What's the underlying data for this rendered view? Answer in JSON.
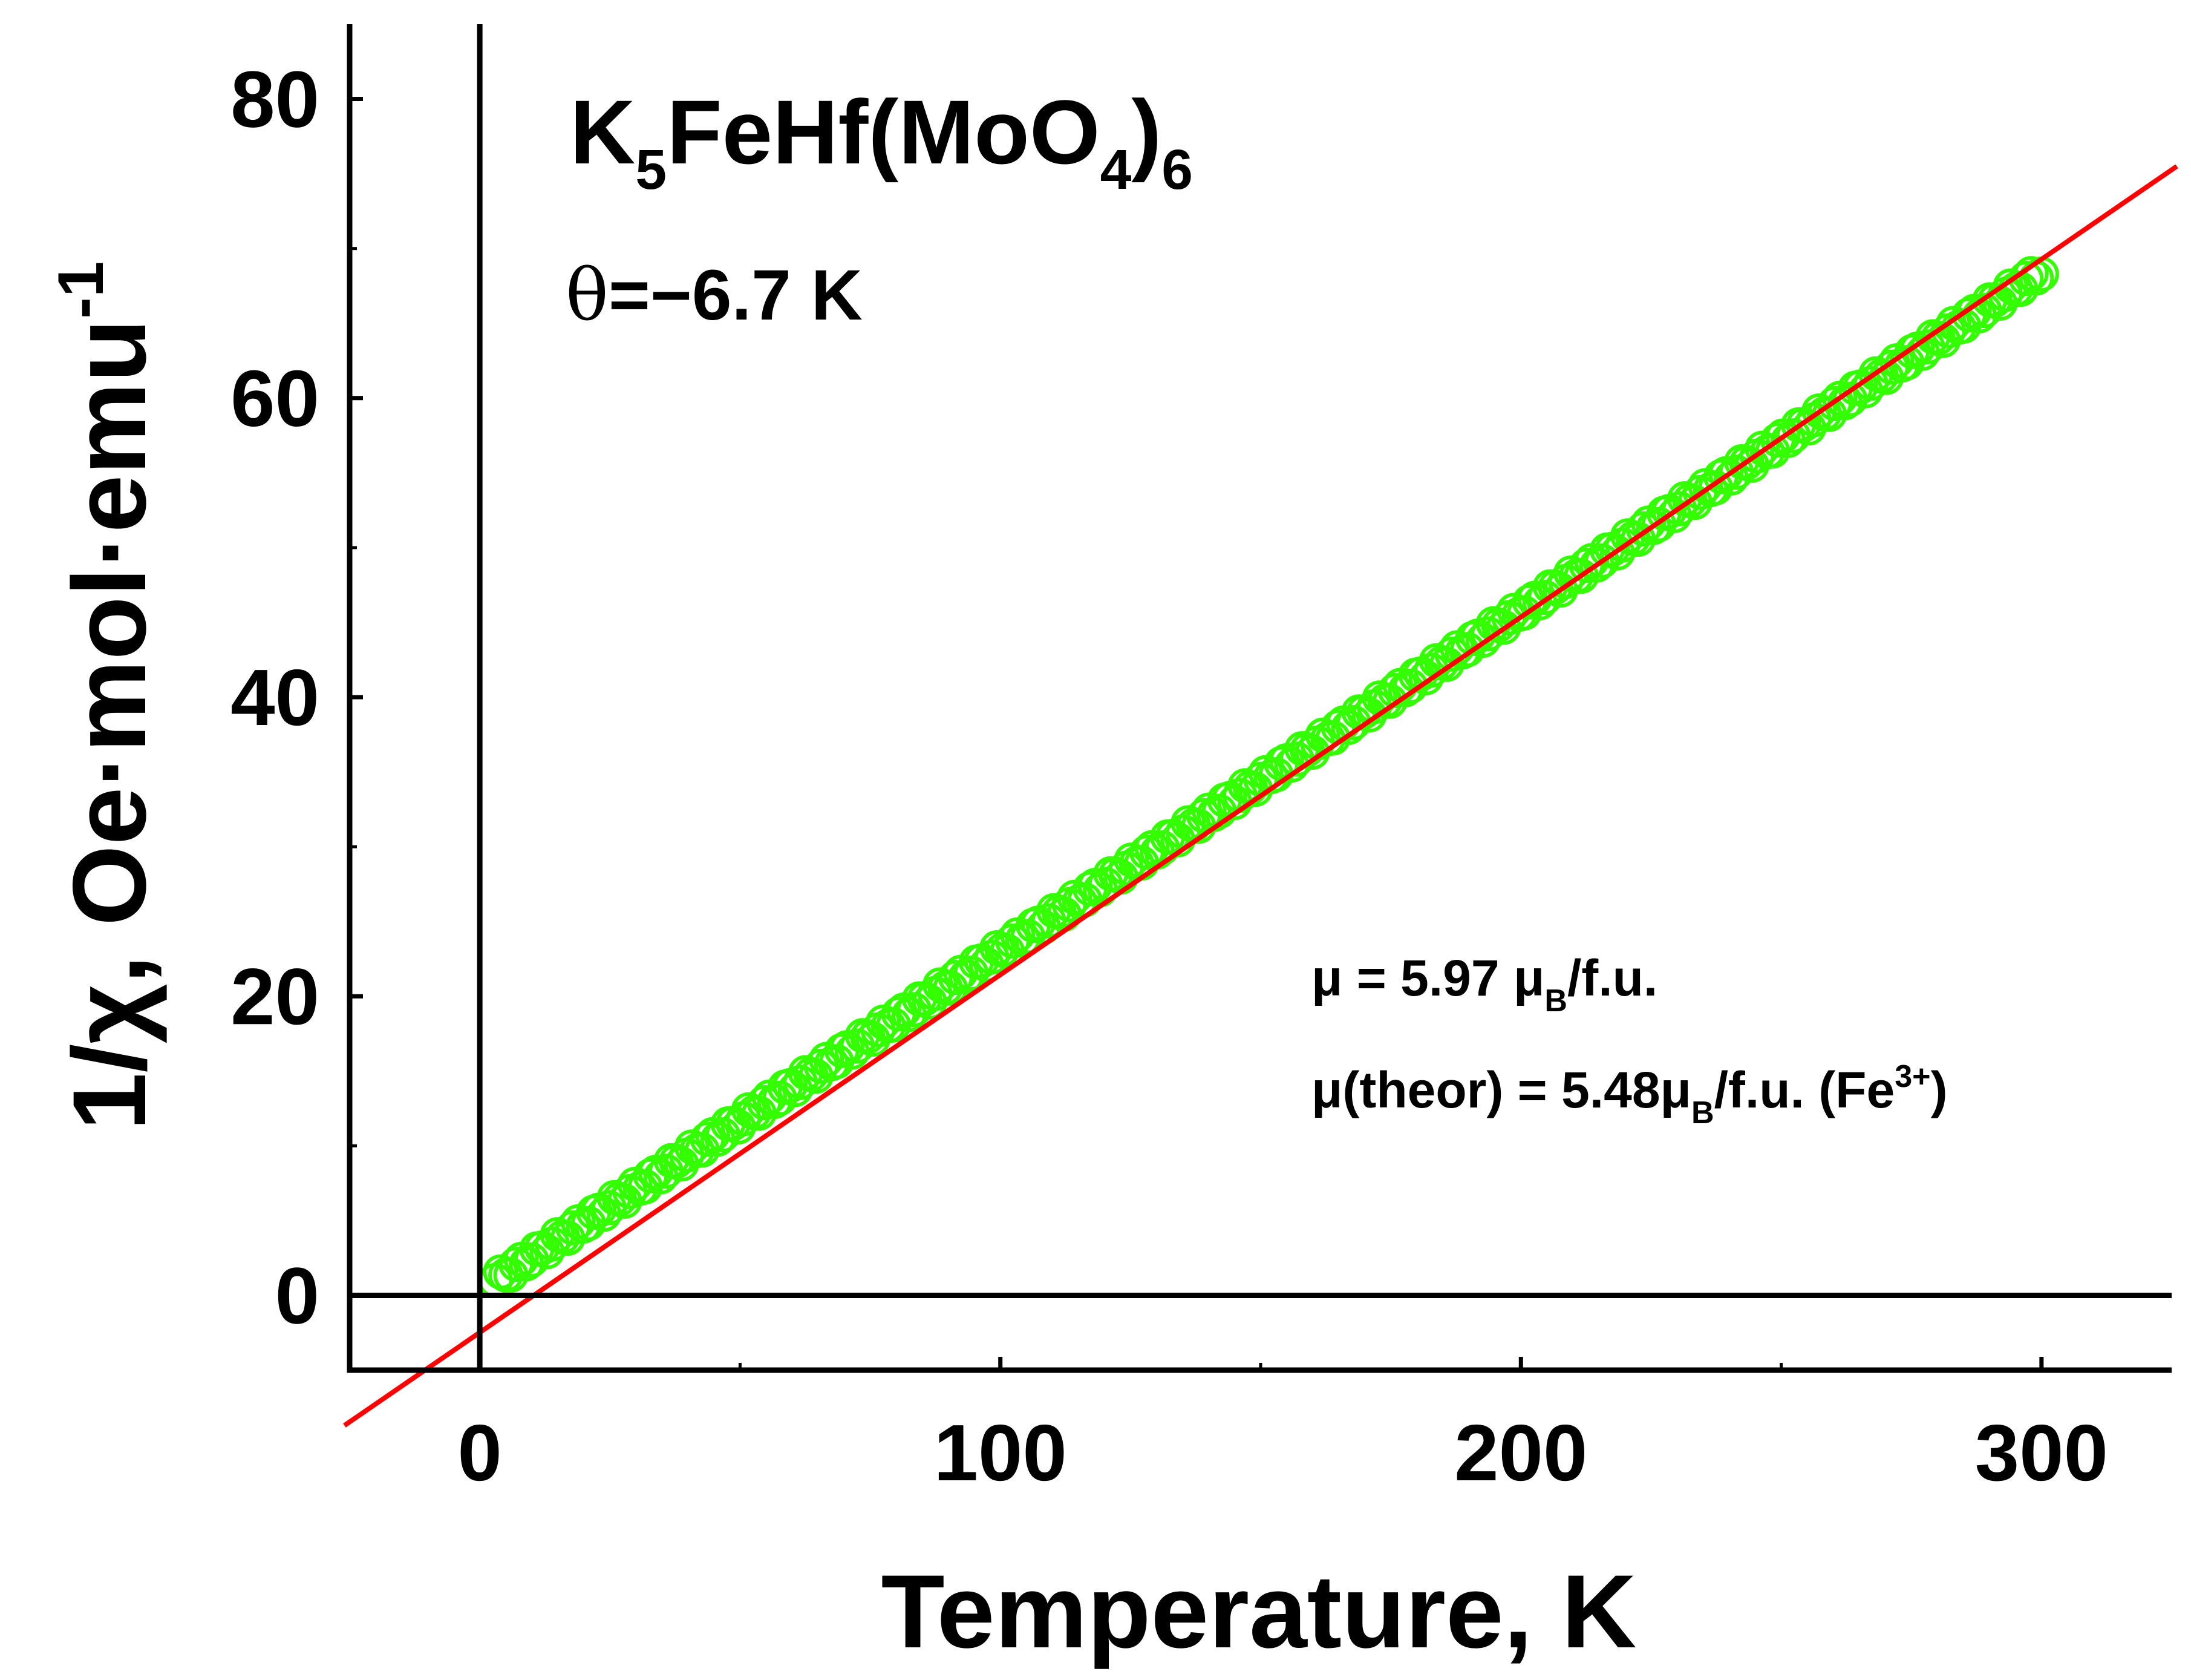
{
  "chart_data": {
    "type": "scatter",
    "xlabel": "Temperature, K",
    "ylabel": {
      "text": "1/χ, Oe·mol·emu",
      "superscript": "-1"
    },
    "xlim": [
      -25,
      325
    ],
    "ylim": [
      -5,
      85
    ],
    "x_ticks": [
      "0",
      "100",
      "200",
      "300"
    ],
    "y_ticks": [
      "0",
      "20",
      "40",
      "60",
      "80"
    ],
    "x_tick_values": [
      0,
      100,
      200,
      300
    ],
    "y_tick_values": [
      0,
      20,
      40,
      60,
      80
    ],
    "grid": false,
    "zero_lines": true,
    "annotations": {
      "compound": [
        "K",
        "5",
        "FeHf(MoO",
        "4",
        ")",
        "6"
      ],
      "theta": {
        "symbol": "θ",
        "text": "=−6.7 K"
      },
      "moment": [
        "μ = 5.97 μ",
        "B",
        "/f.u."
      ],
      "moment_theor": [
        "μ(theor) = 5.48μ",
        "B",
        "/f.u. (Fe",
        "3+",
        ")"
      ]
    },
    "series": [
      {
        "kind": "scatter",
        "marker": "open-circle",
        "color": "#33ff00",
        "x_start": 3,
        "x_end": 300,
        "y_start": 1.0,
        "y_end": 68.5,
        "count": 300
      },
      {
        "kind": "line",
        "color": "#ff0000",
        "x": [
          -26,
          326
        ],
        "y": [
          -8.7,
          75.5
        ]
      }
    ]
  }
}
